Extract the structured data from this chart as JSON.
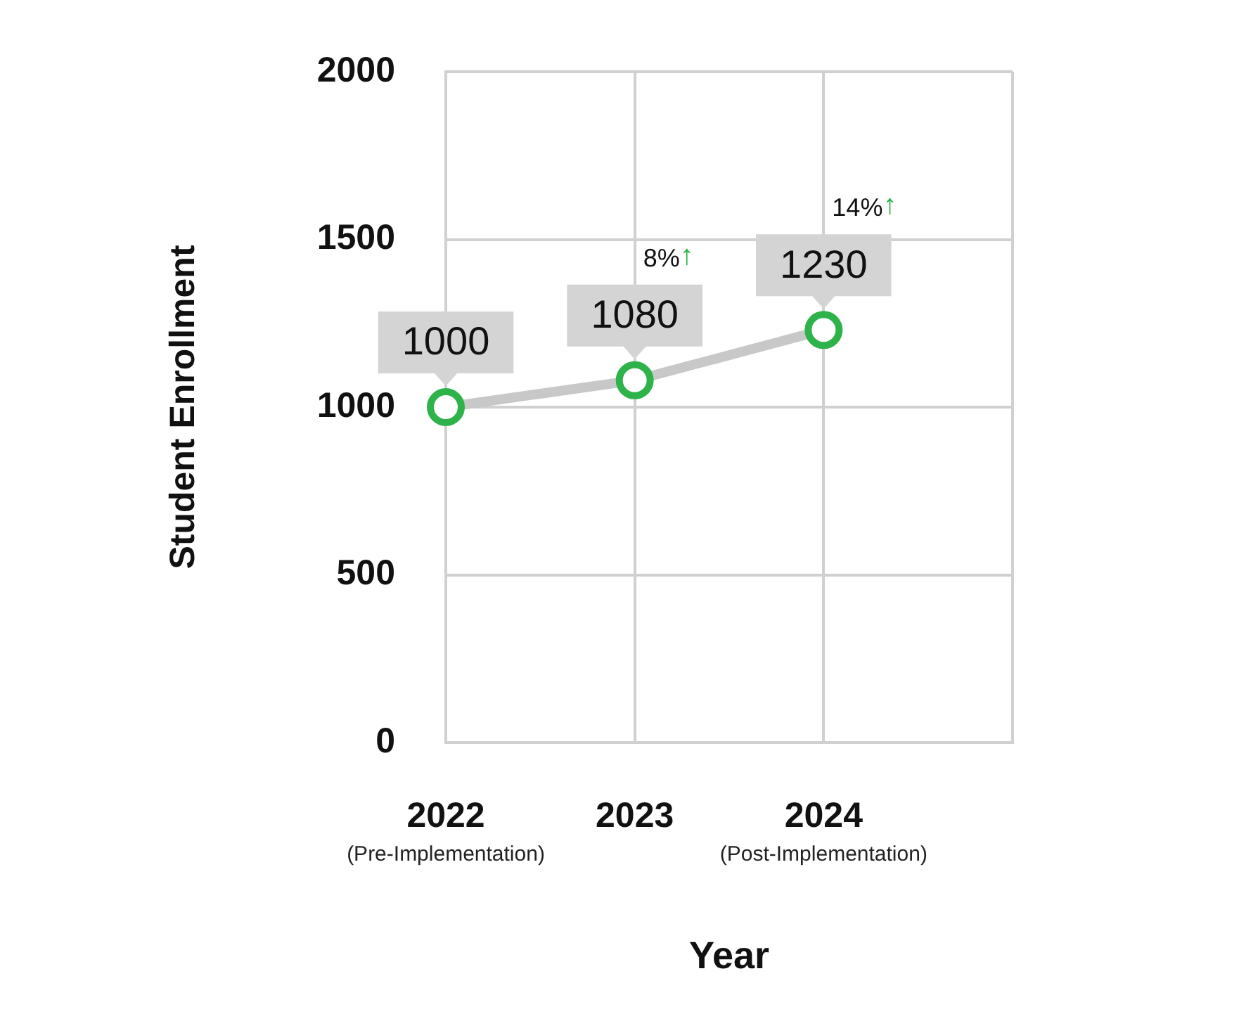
{
  "chart_data": {
    "type": "line",
    "xlabel": "Year",
    "ylabel": "Student Enrollment",
    "categories": [
      "2022\n(Pre-Implementation)",
      "2023",
      "2024\n(Post-Implementation)",
      null
    ],
    "series": [
      {
        "color": "#c8c8c8",
        "values": [
          1000,
          1080,
          1230,
          null
        ]
      }
    ],
    "ylim": [
      0,
      2000
    ],
    "yticks": [
      0,
      500,
      1000,
      1500,
      2000
    ],
    "grid": true,
    "marker": "circle",
    "data_labels": true,
    "annotations": [
      "8%↑",
      "14%↑"
    ]
  }
}
